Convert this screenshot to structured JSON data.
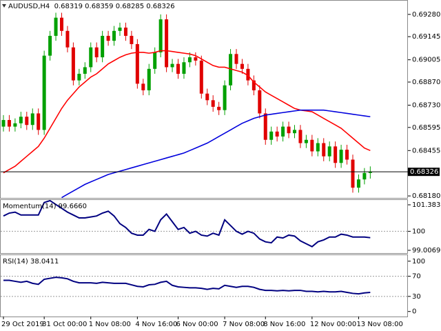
{
  "chart_data": [
    {
      "type": "candlestick",
      "title": "AUDUSD,H4  0.68319 0.68359 0.68285 0.68326",
      "categories": [
        "29 Oct 2019",
        null,
        null,
        null,
        null,
        null,
        null,
        "31 Oct 00:00",
        null,
        null,
        null,
        null,
        null,
        null,
        null,
        "1 Nov 08:00",
        null,
        null,
        null,
        null,
        null,
        null,
        null,
        "4 Nov 16:00",
        null,
        null,
        null,
        null,
        null,
        null,
        "6 Nov 00:00",
        null,
        null,
        null,
        null,
        null,
        null,
        null,
        "7 Nov 08:00",
        null,
        null,
        null,
        null,
        null,
        null,
        "8 Nov 16:00",
        null,
        null,
        null,
        null,
        null,
        null,
        null,
        "12 Nov 00:00",
        null,
        null,
        null,
        null,
        null,
        null,
        null,
        "13 Nov 08:00",
        null,
        null
      ],
      "open": [
        0.686,
        0.6864,
        0.686,
        0.6862,
        0.6866,
        0.6861,
        0.6868,
        0.6858,
        0.6903,
        0.6915,
        0.6926,
        0.6918,
        0.6908,
        0.6888,
        0.6892,
        0.6896,
        0.6908,
        0.6902,
        0.6915,
        0.6912,
        0.6918,
        0.692,
        0.6915,
        0.691,
        0.6886,
        0.6882,
        0.6895,
        0.6905,
        0.6925,
        0.6896,
        0.6898,
        0.6892,
        0.6899,
        0.6902,
        0.69,
        0.688,
        0.6876,
        0.6872,
        0.687,
        0.6885,
        0.6904,
        0.6898,
        0.6895,
        0.6888,
        0.6882,
        0.6868,
        0.6852,
        0.6857,
        0.6854,
        0.686,
        0.6856,
        0.6858,
        0.685,
        0.6852,
        0.6845,
        0.685,
        0.6842,
        0.6848,
        0.6838,
        0.6846,
        0.684,
        0.6823,
        0.6828,
        0.68319
      ],
      "high": [
        0.6867,
        0.6867,
        0.6865,
        0.6869,
        0.6869,
        0.6871,
        0.6871,
        0.6906,
        0.6918,
        0.6929,
        0.6929,
        0.6921,
        0.6911,
        0.6895,
        0.6899,
        0.6911,
        0.6911,
        0.6918,
        0.6918,
        0.6921,
        0.6923,
        0.6923,
        0.6918,
        0.6913,
        0.6889,
        0.6898,
        0.6908,
        0.6928,
        0.6928,
        0.6901,
        0.6901,
        0.6902,
        0.6905,
        0.6905,
        0.6903,
        0.6883,
        0.6879,
        0.6875,
        0.6888,
        0.6907,
        0.6907,
        0.6901,
        0.6898,
        0.6891,
        0.6885,
        0.6871,
        0.686,
        0.686,
        0.6863,
        0.6863,
        0.6861,
        0.6861,
        0.6855,
        0.6855,
        0.6853,
        0.6853,
        0.6851,
        0.6851,
        0.6849,
        0.6849,
        0.6843,
        0.6831,
        0.68349,
        0.68359
      ],
      "low": [
        0.6857,
        0.6857,
        0.6857,
        0.6859,
        0.6858,
        0.6858,
        0.6855,
        0.6855,
        0.69,
        0.6912,
        0.6915,
        0.6905,
        0.6885,
        0.6885,
        0.6889,
        0.6893,
        0.6899,
        0.6899,
        0.6909,
        0.6909,
        0.6915,
        0.6912,
        0.6907,
        0.6883,
        0.6879,
        0.6879,
        0.6892,
        0.6902,
        0.6893,
        0.6893,
        0.6889,
        0.6889,
        0.6896,
        0.6897,
        0.6877,
        0.6873,
        0.6869,
        0.6867,
        0.6867,
        0.6882,
        0.6895,
        0.6892,
        0.6885,
        0.6879,
        0.6865,
        0.6849,
        0.6849,
        0.6851,
        0.6851,
        0.6853,
        0.6853,
        0.6847,
        0.6847,
        0.6842,
        0.6842,
        0.6839,
        0.6839,
        0.6835,
        0.6835,
        0.6837,
        0.682,
        0.682,
        0.6825,
        0.68285
      ],
      "close": [
        0.6864,
        0.686,
        0.6862,
        0.6866,
        0.6861,
        0.6868,
        0.6858,
        0.6903,
        0.6915,
        0.6926,
        0.6918,
        0.6908,
        0.6888,
        0.6892,
        0.6896,
        0.6908,
        0.6902,
        0.6915,
        0.6912,
        0.6918,
        0.692,
        0.6915,
        0.691,
        0.6886,
        0.6882,
        0.6895,
        0.6905,
        0.6925,
        0.6896,
        0.6898,
        0.6892,
        0.6899,
        0.6902,
        0.69,
        0.688,
        0.6876,
        0.6872,
        0.687,
        0.6885,
        0.6904,
        0.6898,
        0.6895,
        0.6888,
        0.6882,
        0.6868,
        0.6852,
        0.6857,
        0.6854,
        0.686,
        0.6856,
        0.6858,
        0.685,
        0.6852,
        0.6845,
        0.685,
        0.6842,
        0.6848,
        0.6838,
        0.6846,
        0.684,
        0.6823,
        0.6828,
        0.68319,
        0.68326
      ],
      "up_color": "#00a000",
      "down_color": "#e00000",
      "series": [
        {
          "color": "#ff0000",
          "values": [
            0.6832,
            0.6834,
            0.6836,
            0.6839,
            0.6842,
            0.6845,
            0.6848,
            0.6853,
            0.6859,
            0.6865,
            0.6871,
            0.6876,
            0.688,
            0.6884,
            0.6887,
            0.689,
            0.6892,
            0.6895,
            0.6898,
            0.69,
            0.6902,
            0.69035,
            0.69045,
            0.6905,
            0.6905,
            0.69045,
            0.6905,
            0.6906,
            0.6906,
            0.69055,
            0.6905,
            0.69045,
            0.6904,
            0.6903,
            0.6901,
            0.6899,
            0.6897,
            0.6896,
            0.6896,
            0.6895,
            0.6894,
            0.6893,
            0.6891,
            0.6887,
            0.6884,
            0.6881,
            0.6879,
            0.6877,
            0.6875,
            0.6873,
            0.6871,
            0.687,
            0.68695,
            0.6869,
            0.6867,
            0.6865,
            0.6863,
            0.6861,
            0.6859,
            0.6856,
            0.6853,
            0.685,
            0.6847,
            0.68455
          ]
        },
        {
          "color": "#0000dd",
          "values": [
            null,
            null,
            null,
            null,
            null,
            null,
            null,
            null,
            null,
            null,
            0.6817,
            0.6819,
            0.6821,
            0.6823,
            0.6825,
            0.68265,
            0.6828,
            0.68295,
            0.6831,
            0.6832,
            0.6833,
            0.6834,
            0.6835,
            0.6836,
            0.6837,
            0.6838,
            0.6839,
            0.684,
            0.6841,
            0.6842,
            0.6843,
            0.6844,
            0.68455,
            0.6847,
            0.68485,
            0.685,
            0.6852,
            0.6854,
            0.6856,
            0.6858,
            0.686,
            0.6862,
            0.68635,
            0.6865,
            0.6866,
            0.6867,
            0.68675,
            0.6868,
            0.68685,
            0.6869,
            0.68695,
            0.687,
            0.687,
            0.687,
            0.687,
            0.687,
            0.68695,
            0.6869,
            0.68685,
            0.6868,
            0.68675,
            0.6867,
            0.68665,
            0.6866
          ]
        }
      ],
      "current_price": {
        "value": 0.68326,
        "label": "0.68326"
      },
      "ylim": [
        0.68168,
        0.69363
      ],
      "yticks": [
        {
          "value": 0.6928,
          "label": "0.69280"
        },
        0.69145,
        0.69005,
        {
          "value": 0.6887,
          "label": "0.68870"
        },
        {
          "value": 0.6873,
          "label": "0.68730"
        },
        0.68595,
        0.68455,
        {
          "value": 0.6818,
          "label": "0.68180"
        }
      ]
    },
    {
      "type": "line",
      "title": "Momentum(14) 99.6660",
      "color": "#000080",
      "values": [
        100.8,
        100.95,
        101.0,
        100.85,
        100.85,
        100.85,
        100.85,
        101.5,
        101.6,
        101.4,
        101.2,
        101.0,
        100.85,
        100.7,
        100.7,
        100.75,
        100.8,
        100.95,
        101.05,
        100.8,
        100.4,
        100.2,
        99.9,
        99.8,
        99.8,
        100.1,
        100.0,
        100.6,
        100.9,
        100.5,
        100.1,
        100.2,
        99.9,
        100.0,
        99.8,
        99.75,
        99.9,
        99.8,
        100.6,
        100.3,
        100.0,
        99.85,
        100.0,
        99.9,
        99.6,
        99.45,
        99.4,
        99.7,
        99.65,
        99.8,
        99.75,
        99.5,
        99.35,
        99.2,
        99.45,
        99.55,
        99.7,
        99.7,
        99.85,
        99.8,
        99.7,
        99.7,
        99.7,
        99.666
      ],
      "ylim": [
        98.863,
        101.635
      ],
      "yticks": [
        101.3833,
        100,
        99.0069
      ],
      "levels": [
        100
      ]
    },
    {
      "type": "line",
      "title": "RSI(14) 38.0411",
      "color": "#000080",
      "values": [
        62,
        62,
        60,
        58,
        60,
        56,
        54,
        64,
        66,
        68,
        67,
        65,
        60,
        57,
        57,
        57,
        56,
        58,
        57,
        56,
        56,
        56,
        53,
        50,
        49,
        53,
        54,
        58,
        60,
        52,
        49,
        48,
        47,
        47,
        46,
        44,
        46,
        45,
        52,
        50,
        48,
        50,
        50,
        48,
        44,
        42,
        42,
        41,
        42,
        41,
        42,
        42,
        40,
        40,
        39,
        40,
        39,
        39,
        40,
        38,
        36,
        35,
        37,
        38.0411
      ],
      "ylim": [
        -10,
        112
      ],
      "yticks": [
        100,
        70,
        30,
        0
      ],
      "levels": [
        70,
        30
      ]
    }
  ]
}
